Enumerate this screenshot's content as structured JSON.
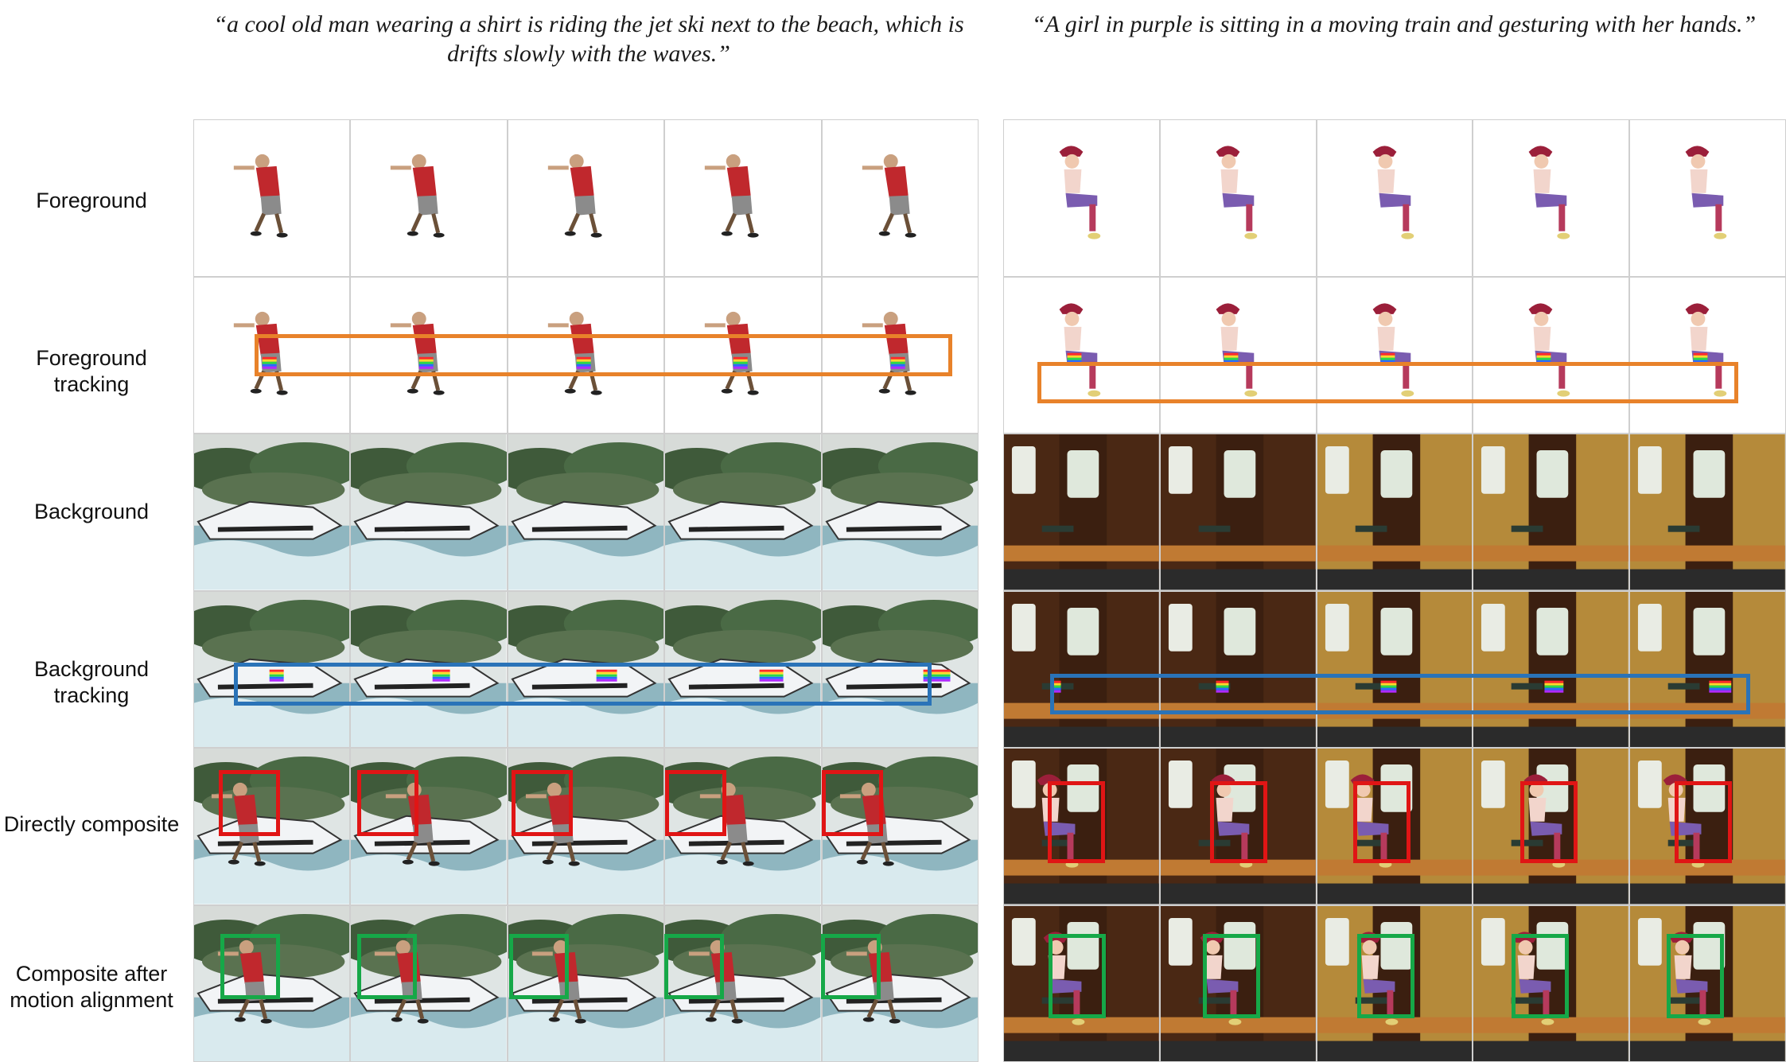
{
  "captions": {
    "left": "“a cool old man wearing a shirt is riding the jet ski next to the beach, which is drifts slowly with the waves.”",
    "right": "“A girl in purple is sitting in a moving train and gesturing with her hands.”"
  },
  "row_labels": [
    "Foreground",
    "Foreground\ntracking",
    "Background",
    "Background\ntracking",
    "Directly composite",
    "Composite after\nmotion alignment"
  ],
  "rows": [
    {
      "id": "foreground",
      "kind": "fg"
    },
    {
      "id": "foreground-tracking",
      "kind": "fg-track"
    },
    {
      "id": "background",
      "kind": "bg"
    },
    {
      "id": "background-tracking",
      "kind": "bg-track"
    },
    {
      "id": "directly-composite",
      "kind": "composite"
    },
    {
      "id": "composite-aligned",
      "kind": "composite-aligned"
    }
  ],
  "frames_per_row": 5,
  "highlight_colors": {
    "foreground_tracking": "#e8822a",
    "background_tracking": "#2a73b8",
    "directly_composite": "#e01515",
    "motion_aligned": "#16a848"
  }
}
